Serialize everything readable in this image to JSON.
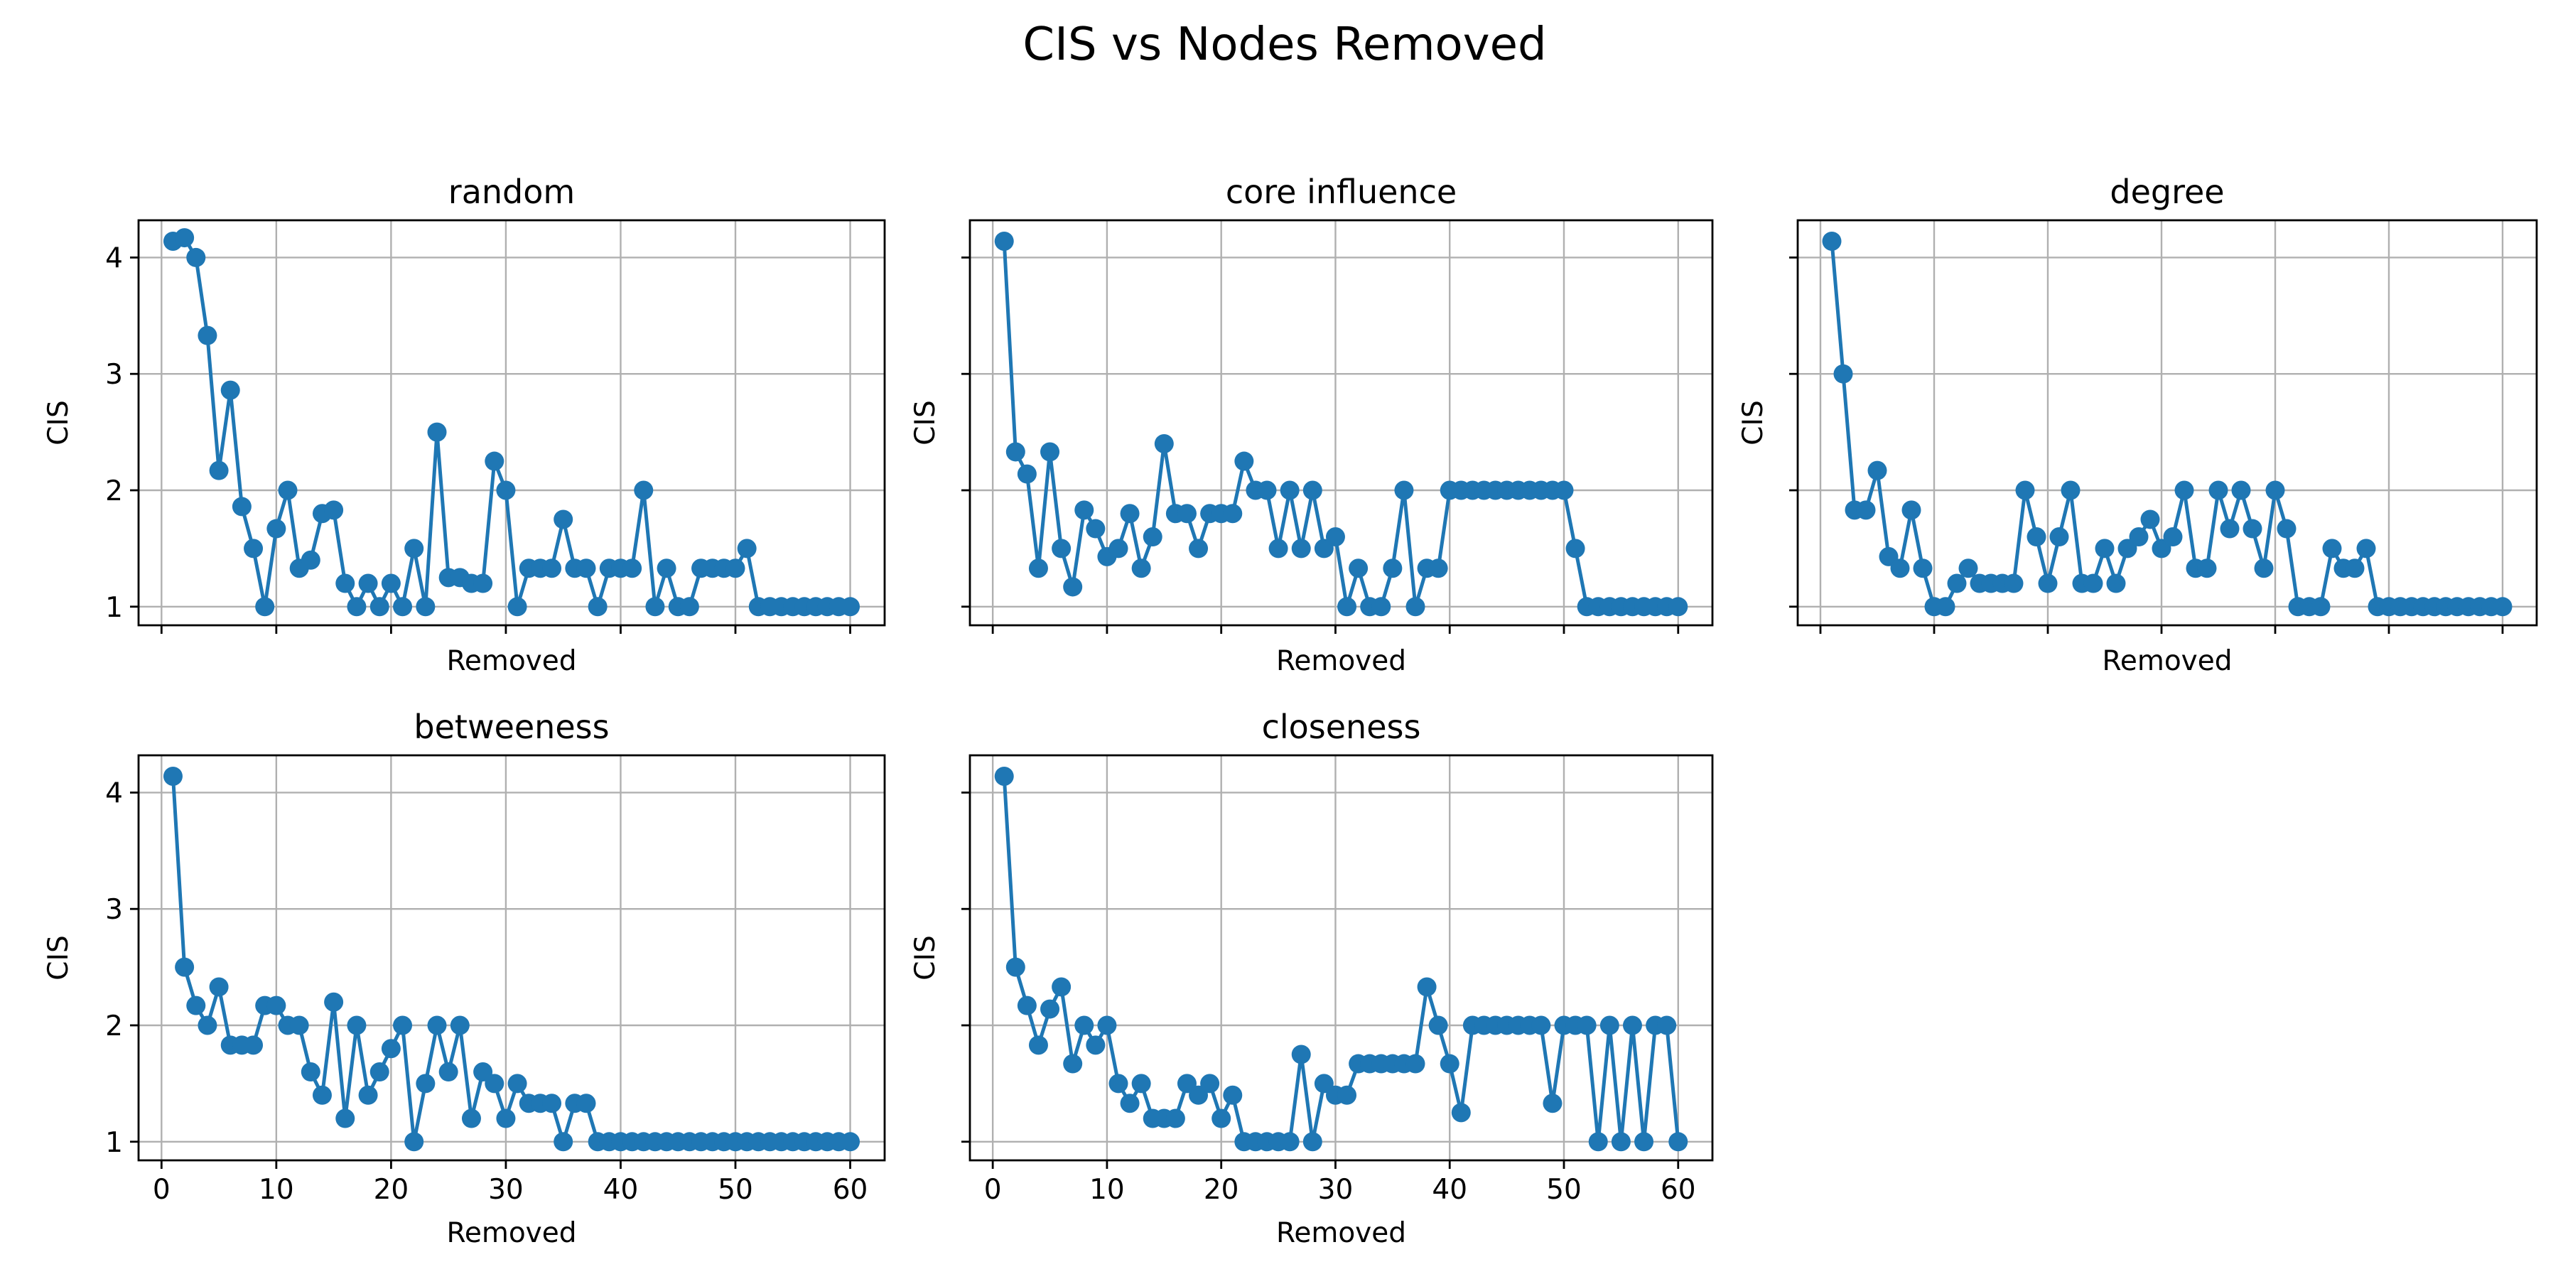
{
  "figure": {
    "title": "CIS vs Nodes Removed",
    "color": "#1f77b4"
  },
  "chart_data": [
    {
      "type": "line",
      "title": "random",
      "xlabel": "Removed",
      "ylabel": "CIS",
      "xlim": [
        -2,
        63
      ],
      "ylim": [
        0.84,
        4.32
      ],
      "xticks": [
        0,
        10,
        20,
        30,
        40,
        50,
        60
      ],
      "yticks": [
        1,
        2,
        3,
        4
      ],
      "show_xticklabels": false,
      "show_yticklabels": true,
      "grid": true,
      "x": [
        1,
        2,
        3,
        4,
        5,
        6,
        7,
        8,
        9,
        10,
        11,
        12,
        13,
        14,
        15,
        16,
        17,
        18,
        19,
        20,
        21,
        22,
        23,
        24,
        25,
        26,
        27,
        28,
        29,
        30,
        31,
        32,
        33,
        34,
        35,
        36,
        37,
        38,
        39,
        40,
        41,
        42,
        43,
        44,
        45,
        46,
        47,
        48,
        49,
        50,
        51,
        52,
        53,
        54,
        55,
        56,
        57,
        58,
        59,
        60
      ],
      "y": [
        4.14,
        4.17,
        4.0,
        3.33,
        2.17,
        2.86,
        1.86,
        1.5,
        1.0,
        1.67,
        2.0,
        1.33,
        1.4,
        1.8,
        1.83,
        1.2,
        1.0,
        1.2,
        1.0,
        1.2,
        1.0,
        1.5,
        1.0,
        2.5,
        1.25,
        1.25,
        1.2,
        1.2,
        2.25,
        2.0,
        1.0,
        1.33,
        1.33,
        1.33,
        1.75,
        1.33,
        1.33,
        1.0,
        1.33,
        1.33,
        1.33,
        2.0,
        1.0,
        1.33,
        1.0,
        1.0,
        1.33,
        1.33,
        1.33,
        1.33,
        1.5,
        1.0,
        1.0,
        1.0,
        1.0,
        1.0,
        1.0,
        1.0,
        1.0,
        1.0
      ]
    },
    {
      "type": "line",
      "title": "core influence",
      "xlabel": "Removed",
      "ylabel": "CIS",
      "xlim": [
        -2,
        63
      ],
      "ylim": [
        0.84,
        4.32
      ],
      "xticks": [
        0,
        10,
        20,
        30,
        40,
        50,
        60
      ],
      "yticks": [
        1,
        2,
        3,
        4
      ],
      "show_xticklabels": false,
      "show_yticklabels": false,
      "grid": true,
      "x": [
        1,
        2,
        3,
        4,
        5,
        6,
        7,
        8,
        9,
        10,
        11,
        12,
        13,
        14,
        15,
        16,
        17,
        18,
        19,
        20,
        21,
        22,
        23,
        24,
        25,
        26,
        27,
        28,
        29,
        30,
        31,
        32,
        33,
        34,
        35,
        36,
        37,
        38,
        39,
        40,
        41,
        42,
        43,
        44,
        45,
        46,
        47,
        48,
        49,
        50,
        51,
        52,
        53,
        54,
        55,
        56,
        57,
        58,
        59,
        60
      ],
      "y": [
        4.14,
        2.33,
        2.14,
        1.33,
        2.33,
        1.5,
        1.17,
        1.83,
        1.67,
        1.43,
        1.5,
        1.8,
        1.33,
        1.6,
        2.4,
        1.8,
        1.8,
        1.5,
        1.8,
        1.8,
        1.8,
        2.25,
        2.0,
        2.0,
        1.5,
        2.0,
        1.5,
        2.0,
        1.5,
        1.6,
        1.0,
        1.33,
        1.0,
        1.0,
        1.33,
        2.0,
        1.0,
        1.33,
        1.33,
        2.0,
        2.0,
        2.0,
        2.0,
        2.0,
        2.0,
        2.0,
        2.0,
        2.0,
        2.0,
        2.0,
        1.5,
        1.0,
        1.0,
        1.0,
        1.0,
        1.0,
        1.0,
        1.0,
        1.0,
        1.0
      ]
    },
    {
      "type": "line",
      "title": "degree",
      "xlabel": "Removed",
      "ylabel": "CIS",
      "xlim": [
        -2,
        63
      ],
      "ylim": [
        0.84,
        4.32
      ],
      "xticks": [
        0,
        10,
        20,
        30,
        40,
        50,
        60
      ],
      "yticks": [
        1,
        2,
        3,
        4
      ],
      "show_xticklabels": false,
      "show_yticklabels": false,
      "grid": true,
      "x": [
        1,
        2,
        3,
        4,
        5,
        6,
        7,
        8,
        9,
        10,
        11,
        12,
        13,
        14,
        15,
        16,
        17,
        18,
        19,
        20,
        21,
        22,
        23,
        24,
        25,
        26,
        27,
        28,
        29,
        30,
        31,
        32,
        33,
        34,
        35,
        36,
        37,
        38,
        39,
        40,
        41,
        42,
        43,
        44,
        45,
        46,
        47,
        48,
        49,
        50,
        51,
        52,
        53,
        54,
        55,
        56,
        57,
        58,
        59,
        60
      ],
      "y": [
        4.14,
        3.0,
        1.83,
        1.83,
        2.17,
        1.43,
        1.33,
        1.83,
        1.33,
        1.0,
        1.0,
        1.2,
        1.33,
        1.2,
        1.2,
        1.2,
        1.2,
        2.0,
        1.6,
        1.2,
        1.6,
        2.0,
        1.2,
        1.2,
        1.5,
        1.2,
        1.5,
        1.6,
        1.75,
        1.5,
        1.6,
        2.0,
        1.33,
        1.33,
        2.0,
        1.67,
        2.0,
        1.67,
        1.33,
        2.0,
        1.67,
        1.0,
        1.0,
        1.0,
        1.5,
        1.33,
        1.33,
        1.5,
        1.0,
        1.0,
        1.0,
        1.0,
        1.0,
        1.0,
        1.0,
        1.0,
        1.0,
        1.0,
        1.0,
        1.0
      ]
    },
    {
      "type": "line",
      "title": "betweeness",
      "xlabel": "Removed",
      "ylabel": "CIS",
      "xlim": [
        -2,
        63
      ],
      "ylim": [
        0.84,
        4.32
      ],
      "xticks": [
        0,
        10,
        20,
        30,
        40,
        50,
        60
      ],
      "yticks": [
        1,
        2,
        3,
        4
      ],
      "show_xticklabels": true,
      "show_yticklabels": true,
      "grid": true,
      "x": [
        1,
        2,
        3,
        4,
        5,
        6,
        7,
        8,
        9,
        10,
        11,
        12,
        13,
        14,
        15,
        16,
        17,
        18,
        19,
        20,
        21,
        22,
        23,
        24,
        25,
        26,
        27,
        28,
        29,
        30,
        31,
        32,
        33,
        34,
        35,
        36,
        37,
        38,
        39,
        40,
        41,
        42,
        43,
        44,
        45,
        46,
        47,
        48,
        49,
        50,
        51,
        52,
        53,
        54,
        55,
        56,
        57,
        58,
        59,
        60
      ],
      "y": [
        4.14,
        2.5,
        2.17,
        2.0,
        2.33,
        1.83,
        1.83,
        1.83,
        2.17,
        2.17,
        2.0,
        2.0,
        1.6,
        1.4,
        2.2,
        1.2,
        2.0,
        1.4,
        1.6,
        1.8,
        2.0,
        1.0,
        1.5,
        2.0,
        1.6,
        2.0,
        1.2,
        1.6,
        1.5,
        1.2,
        1.5,
        1.33,
        1.33,
        1.33,
        1.0,
        1.33,
        1.33,
        1.0,
        1.0,
        1.0,
        1.0,
        1.0,
        1.0,
        1.0,
        1.0,
        1.0,
        1.0,
        1.0,
        1.0,
        1.0,
        1.0,
        1.0,
        1.0,
        1.0,
        1.0,
        1.0,
        1.0,
        1.0,
        1.0,
        1.0
      ]
    },
    {
      "type": "line",
      "title": "closeness",
      "xlabel": "Removed",
      "ylabel": "CIS",
      "xlim": [
        -2,
        63
      ],
      "ylim": [
        0.84,
        4.32
      ],
      "xticks": [
        0,
        10,
        20,
        30,
        40,
        50,
        60
      ],
      "yticks": [
        1,
        2,
        3,
        4
      ],
      "show_xticklabels": true,
      "show_yticklabels": false,
      "grid": true,
      "x": [
        1,
        2,
        3,
        4,
        5,
        6,
        7,
        8,
        9,
        10,
        11,
        12,
        13,
        14,
        15,
        16,
        17,
        18,
        19,
        20,
        21,
        22,
        23,
        24,
        25,
        26,
        27,
        28,
        29,
        30,
        31,
        32,
        33,
        34,
        35,
        36,
        37,
        38,
        39,
        40,
        41,
        42,
        43,
        44,
        45,
        46,
        47,
        48,
        49,
        50,
        51,
        52,
        53,
        54,
        55,
        56,
        57,
        58,
        59,
        60
      ],
      "y": [
        4.14,
        2.5,
        2.17,
        1.83,
        2.14,
        2.33,
        1.67,
        2.0,
        1.83,
        2.0,
        1.5,
        1.33,
        1.5,
        1.2,
        1.2,
        1.2,
        1.5,
        1.4,
        1.5,
        1.2,
        1.4,
        1.0,
        1.0,
        1.0,
        1.0,
        1.0,
        1.75,
        1.0,
        1.5,
        1.4,
        1.4,
        1.67,
        1.67,
        1.67,
        1.67,
        1.67,
        1.67,
        2.33,
        2.0,
        1.67,
        1.25,
        2.0,
        2.0,
        2.0,
        2.0,
        2.0,
        2.0,
        2.0,
        1.33,
        2.0,
        2.0,
        2.0,
        1.0,
        2.0,
        1.0,
        2.0,
        1.0,
        2.0,
        2.0,
        1.0
      ]
    }
  ]
}
